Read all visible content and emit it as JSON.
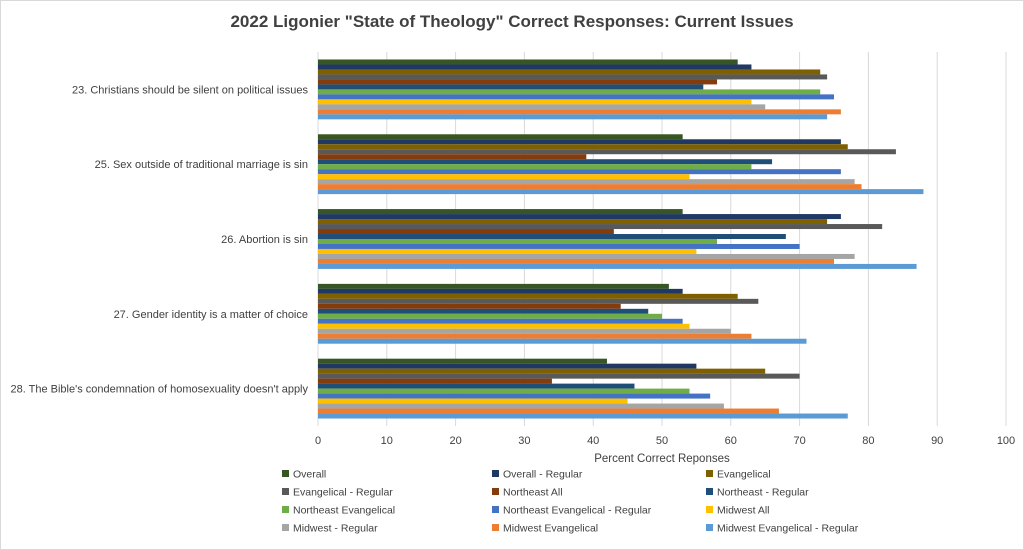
{
  "chart_data": {
    "type": "bar",
    "orientation": "horizontal",
    "title": "2022 Ligonier \"State of Theology\" Correct Responses: Current Issues",
    "xlabel": "Percent Correct Reponses",
    "ylabel": "",
    "xlim": [
      0,
      100
    ],
    "xticks": [
      0,
      10,
      20,
      30,
      40,
      50,
      60,
      70,
      80,
      90,
      100
    ],
    "grid": true,
    "legend_position": "bottom",
    "categories": [
      "23. Christians should be silent on political issues",
      "25. Sex outside of traditional marriage is sin",
      "26. Abortion is sin",
      "27. Gender identity is a matter of choice",
      "28. The Bible's condemnation of homosexuality doesn't apply"
    ],
    "series": [
      {
        "name": "Overall",
        "color": "#375623",
        "values": [
          61,
          53,
          53,
          51,
          42
        ]
      },
      {
        "name": "Overall - Regular",
        "color": "#203864",
        "values": [
          63,
          76,
          76,
          53,
          55
        ]
      },
      {
        "name": "Evangelical",
        "color": "#7f6000",
        "values": [
          73,
          77,
          74,
          61,
          65
        ]
      },
      {
        "name": "Evangelical - Regular",
        "color": "#595959",
        "values": [
          74,
          84,
          82,
          64,
          70
        ]
      },
      {
        "name": "Northeast All",
        "color": "#843c0c",
        "values": [
          58,
          39,
          43,
          44,
          34
        ]
      },
      {
        "name": "Northeast - Regular",
        "color": "#1f4e79",
        "values": [
          56,
          66,
          68,
          48,
          46
        ]
      },
      {
        "name": "Northeast Evangelical",
        "color": "#70ad47",
        "values": [
          73,
          63,
          58,
          50,
          54
        ]
      },
      {
        "name": "Northeast Evangelical - Regular",
        "color": "#4472c4",
        "values": [
          75,
          76,
          70,
          53,
          57
        ]
      },
      {
        "name": "Midwest All",
        "color": "#ffc000",
        "values": [
          63,
          54,
          55,
          54,
          45
        ]
      },
      {
        "name": "Midwest - Regular",
        "color": "#a5a5a5",
        "values": [
          65,
          78,
          78,
          60,
          59
        ]
      },
      {
        "name": "Midwest Evangelical",
        "color": "#ed7d31",
        "values": [
          76,
          79,
          75,
          63,
          67
        ]
      },
      {
        "name": "Midwest Evangelical - Regular",
        "color": "#5b9bd5",
        "values": [
          74,
          88,
          87,
          71,
          77
        ]
      }
    ]
  }
}
